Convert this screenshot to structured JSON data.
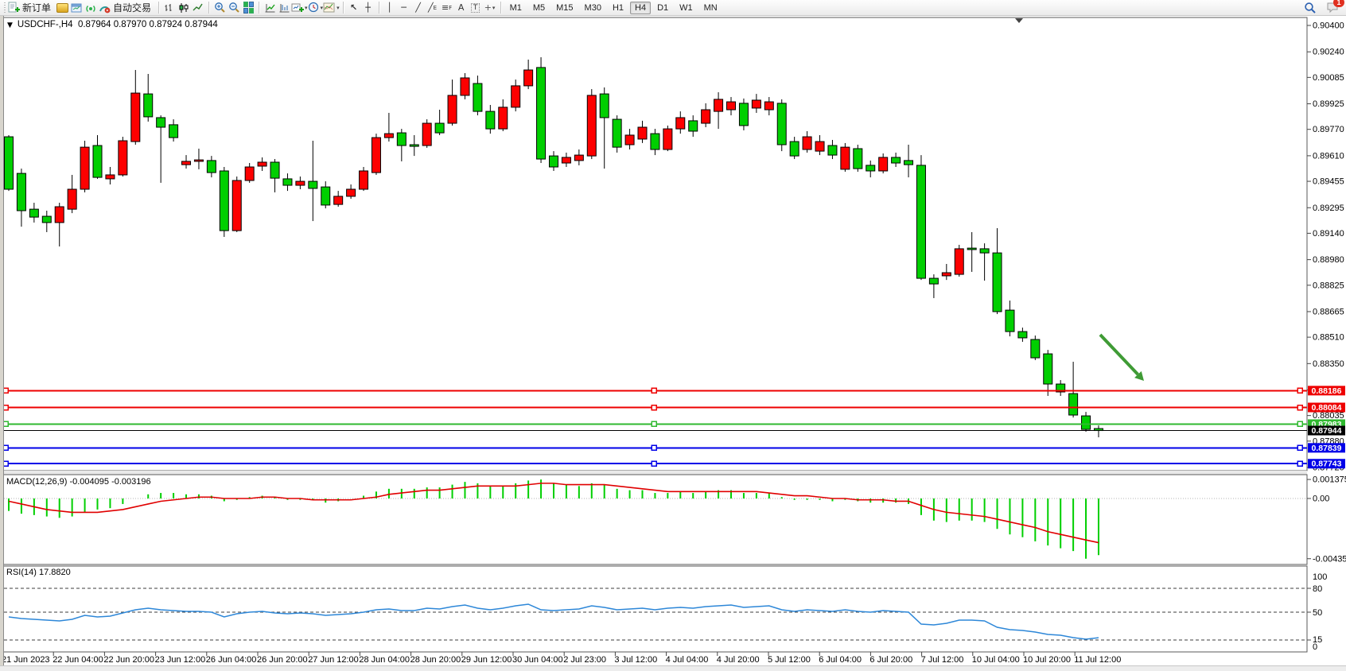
{
  "toolbar": {
    "new_order_label": "新订单",
    "autotrading_label": "自动交易",
    "timeframes": [
      "M1",
      "M5",
      "M15",
      "M30",
      "H1",
      "H4",
      "D1",
      "W1",
      "MN"
    ],
    "active_timeframe": "H4",
    "notification_count": "1"
  },
  "icons": {
    "chart-menu-icon": "▼",
    "cursor-icon": "↖",
    "crosshair-icon": "┼",
    "vertical-line-icon": "│",
    "horizontal-line-icon": "─",
    "trendline-icon": "╱",
    "channel-icon": "╱",
    "channel-sub": "E",
    "fibonacci-icon": "≡",
    "fibonacci-sub": "F",
    "text-icon": "A",
    "text-label-icon": "T",
    "arrows-tool-icon": "+",
    "dropdown-caret": "▾",
    "shift-marker-icon": "▼"
  },
  "chart": {
    "title": "USDCHF-,H4",
    "ohlc": "0.87964 0.87970 0.87924 0.87944"
  },
  "chart_data": {
    "type": "candlestick",
    "symbol": "USDCHF-",
    "timeframe": "H4",
    "ohlc_display": [
      "0.87964",
      "0.87970",
      "0.87924",
      "0.87944"
    ],
    "ylim": [
      0.877,
      0.9045
    ],
    "grid": false,
    "colors": {
      "candle_up": "#FD0000",
      "candle_down": "#00CF00",
      "candle_border": "#000000",
      "red_line": "#EE0000",
      "green_line": "#2FB92F",
      "blue_line": "#0000E8",
      "current_line": "#000000",
      "macd_hist": "#00CF00",
      "macd_signal": "#E00000",
      "rsi_line": "#2D87D8",
      "arrow": "#3F9B35"
    },
    "price_ticks": [
      "0.90400",
      "0.90240",
      "0.90085",
      "0.89925",
      "0.89770",
      "0.89610",
      "0.89455",
      "0.89295",
      "0.89140",
      "0.88980",
      "0.88825",
      "0.88665",
      "0.88510",
      "0.88350",
      "0.88190",
      "0.88035",
      "0.87880",
      "0.87720"
    ],
    "hlines": [
      {
        "price": 0.88186,
        "label": "0.88186",
        "color": "#EE0000"
      },
      {
        "price": 0.88084,
        "label": "0.88084",
        "color": "#EE0000"
      },
      {
        "price": 0.87983,
        "label": "0.87983",
        "color": "#2FB92F"
      },
      {
        "price": 0.87839,
        "label": "0.87839",
        "color": "#0000E8"
      },
      {
        "price": 0.87743,
        "label": "0.87743",
        "color": "#0000E8"
      }
    ],
    "current_price": {
      "price": 0.87944,
      "label": "0.87944",
      "color": "#000000"
    },
    "candles": [
      [
        0.89725,
        0.89735,
        0.89397,
        0.89407
      ],
      [
        0.89503,
        0.89532,
        0.8918,
        0.89277
      ],
      [
        0.89286,
        0.89325,
        0.89205,
        0.89238
      ],
      [
        0.89243,
        0.89277,
        0.89147,
        0.89205
      ],
      [
        0.89205,
        0.89325,
        0.8906,
        0.89301
      ],
      [
        0.89286,
        0.89494,
        0.89262,
        0.89407
      ],
      [
        0.89407,
        0.89701,
        0.89388,
        0.89662
      ],
      [
        0.89672,
        0.89735,
        0.8947,
        0.89479
      ],
      [
        0.8947,
        0.89542,
        0.89436,
        0.89494
      ],
      [
        0.89494,
        0.89725,
        0.89484,
        0.89701
      ],
      [
        0.89696,
        0.9013,
        0.89677,
        0.8999
      ],
      [
        0.89985,
        0.90106,
        0.89817,
        0.89846
      ],
      [
        0.89841,
        0.89855,
        0.89446,
        0.89783
      ],
      [
        0.89798,
        0.89831,
        0.89696,
        0.8972
      ],
      [
        0.89556,
        0.89614,
        0.89532,
        0.89576
      ],
      [
        0.89576,
        0.89653,
        0.89528,
        0.89585
      ],
      [
        0.89581,
        0.89609,
        0.89479,
        0.89508
      ],
      [
        0.89518,
        0.89542,
        0.89118,
        0.89156
      ],
      [
        0.89156,
        0.89484,
        0.89147,
        0.8946
      ],
      [
        0.8946,
        0.89566,
        0.89446,
        0.89542
      ],
      [
        0.89547,
        0.896,
        0.89518,
        0.89571
      ],
      [
        0.89571,
        0.8959,
        0.89388,
        0.89474
      ],
      [
        0.8947,
        0.89503,
        0.89397,
        0.89431
      ],
      [
        0.89431,
        0.89484,
        0.89407,
        0.89455
      ],
      [
        0.89455,
        0.89701,
        0.89214,
        0.89412
      ],
      [
        0.89421,
        0.89455,
        0.89291,
        0.89311
      ],
      [
        0.89315,
        0.89397,
        0.89301,
        0.89364
      ],
      [
        0.89364,
        0.89436,
        0.89349,
        0.89407
      ],
      [
        0.89407,
        0.89542,
        0.89397,
        0.89518
      ],
      [
        0.89508,
        0.89744,
        0.89494,
        0.8972
      ],
      [
        0.8972,
        0.8987,
        0.89696,
        0.89744
      ],
      [
        0.89749,
        0.89773,
        0.89576,
        0.89672
      ],
      [
        0.89677,
        0.89735,
        0.89609,
        0.89667
      ],
      [
        0.89672,
        0.89831,
        0.89658,
        0.89807
      ],
      [
        0.89807,
        0.89889,
        0.89735,
        0.89749
      ],
      [
        0.89807,
        0.90072,
        0.89793,
        0.89976
      ],
      [
        0.89976,
        0.90111,
        0.89952,
        0.90082
      ],
      [
        0.90048,
        0.90096,
        0.89855,
        0.89879
      ],
      [
        0.89879,
        0.89918,
        0.89744,
        0.89773
      ],
      [
        0.89773,
        0.89952,
        0.89759,
        0.89904
      ],
      [
        0.89904,
        0.90072,
        0.89879,
        0.90034
      ],
      [
        0.90034,
        0.90193,
        0.90014,
        0.9013
      ],
      [
        0.90145,
        0.90207,
        0.89566,
        0.8959
      ],
      [
        0.89609,
        0.89638,
        0.89518,
        0.89542
      ],
      [
        0.89566,
        0.89629,
        0.89542,
        0.896
      ],
      [
        0.89581,
        0.89648,
        0.89552,
        0.89614
      ],
      [
        0.89609,
        0.90014,
        0.8959,
        0.89976
      ],
      [
        0.89985,
        0.90024,
        0.89532,
        0.89841
      ],
      [
        0.89831,
        0.89855,
        0.89629,
        0.89662
      ],
      [
        0.89677,
        0.89773,
        0.89648,
        0.89735
      ],
      [
        0.89711,
        0.89822,
        0.89687,
        0.89783
      ],
      [
        0.89744,
        0.89773,
        0.89614,
        0.89648
      ],
      [
        0.89648,
        0.89793,
        0.89638,
        0.89773
      ],
      [
        0.89773,
        0.89879,
        0.89744,
        0.89841
      ],
      [
        0.89822,
        0.89855,
        0.89725,
        0.89759
      ],
      [
        0.89807,
        0.89928,
        0.89783,
        0.89889
      ],
      [
        0.89879,
        0.89995,
        0.89773,
        0.89952
      ],
      [
        0.89889,
        0.89966,
        0.89855,
        0.89937
      ],
      [
        0.89928,
        0.89957,
        0.89764,
        0.89793
      ],
      [
        0.89899,
        0.89985,
        0.8987,
        0.89947
      ],
      [
        0.89889,
        0.89966,
        0.89855,
        0.89937
      ],
      [
        0.89928,
        0.89952,
        0.89638,
        0.89677
      ],
      [
        0.89696,
        0.89725,
        0.8959,
        0.89609
      ],
      [
        0.89648,
        0.89759,
        0.89629,
        0.89725
      ],
      [
        0.89638,
        0.89735,
        0.89614,
        0.89696
      ],
      [
        0.89672,
        0.89706,
        0.8959,
        0.89614
      ],
      [
        0.89528,
        0.89687,
        0.89513,
        0.89662
      ],
      [
        0.89653,
        0.89677,
        0.89513,
        0.89532
      ],
      [
        0.89552,
        0.89581,
        0.89479,
        0.89518
      ],
      [
        0.89518,
        0.89624,
        0.89503,
        0.896
      ],
      [
        0.896,
        0.89629,
        0.89542,
        0.89566
      ],
      [
        0.89581,
        0.89677,
        0.89479,
        0.89556
      ],
      [
        0.89552,
        0.89614,
        0.88857,
        0.88867
      ],
      [
        0.88867,
        0.88891,
        0.88747,
        0.88833
      ],
      [
        0.88882,
        0.88954,
        0.88857,
        0.88901
      ],
      [
        0.88891,
        0.8907,
        0.88877,
        0.89046
      ],
      [
        0.8905,
        0.89147,
        0.88906,
        0.89041
      ],
      [
        0.89046,
        0.89079,
        0.88853,
        0.89021
      ],
      [
        0.89021,
        0.89171,
        0.8865,
        0.88665
      ],
      [
        0.88674,
        0.88732,
        0.88515,
        0.88544
      ],
      [
        0.88544,
        0.88568,
        0.88482,
        0.88506
      ],
      [
        0.88496,
        0.8852,
        0.88371,
        0.88385
      ],
      [
        0.88409,
        0.88433,
        0.88154,
        0.88226
      ],
      [
        0.88226,
        0.8825,
        0.88154,
        0.88178
      ],
      [
        0.88168,
        0.88361,
        0.88023,
        0.88038
      ],
      [
        0.88033,
        0.88057,
        0.87937,
        0.87951
      ],
      [
        0.87956,
        0.87975,
        0.87903,
        0.87944
      ]
    ],
    "macd": {
      "label": "MACD(12,26,9)",
      "values_text": "-0.004095 -0.003196",
      "label_full": "MACD(12,26,9) -0.004095 -0.003196",
      "scale_ticks": [
        "0.001375",
        "0.00",
        "-0.004356"
      ],
      "max": 0.001375,
      "min": -0.004356,
      "hist": [
        -0.0009,
        -0.0011,
        -0.0012,
        -0.0013,
        -0.0014,
        -0.0013,
        -0.001,
        -0.0008,
        -0.0007,
        -0.0004,
        0.0,
        0.0003,
        0.0004,
        0.0004,
        0.0003,
        0.0003,
        0.0002,
        -0.0002,
        -0.0001,
        0.0001,
        0.0002,
        0.0001,
        -0.0001,
        -0.0001,
        -0.0001,
        -0.0003,
        -0.0002,
        0.0,
        0.0002,
        0.0005,
        0.0007,
        0.0007,
        0.0007,
        0.0008,
        0.0008,
        0.001,
        0.0012,
        0.0011,
        0.0009,
        0.0009,
        0.0011,
        0.0013,
        0.00137,
        0.0011,
        0.001,
        0.0009,
        0.0011,
        0.001,
        0.0007,
        0.0006,
        0.0006,
        0.0004,
        0.0004,
        0.0005,
        0.0004,
        0.0005,
        0.0006,
        0.0006,
        0.0004,
        0.0004,
        0.0004,
        0.0001,
        -0.0001,
        -0.0001,
        -0.0001,
        -0.0002,
        -0.0001,
        -0.0002,
        -0.0003,
        -0.0003,
        -0.0003,
        -0.0004,
        -0.0012,
        -0.0016,
        -0.0017,
        -0.0016,
        -0.0016,
        -0.0017,
        -0.0022,
        -0.0026,
        -0.0028,
        -0.0031,
        -0.0034,
        -0.0036,
        -0.0038,
        -0.004356,
        -0.004095
      ],
      "signal": [
        -0.0002,
        -0.0004,
        -0.0006,
        -0.0008,
        -0.0009,
        -0.001,
        -0.001,
        -0.001,
        -0.0009,
        -0.0008,
        -0.0006,
        -0.0004,
        -0.0002,
        -0.0001,
        0.0,
        0.0001,
        0.0001,
        0.0,
        0.0,
        0.0,
        0.0001,
        0.0001,
        0.0,
        0.0,
        -0.0001,
        -0.0001,
        -0.0001,
        -0.0001,
        0.0,
        0.0001,
        0.0003,
        0.0004,
        0.0005,
        0.0006,
        0.0006,
        0.0007,
        0.0008,
        0.0009,
        0.0009,
        0.0009,
        0.0009,
        0.001,
        0.0011,
        0.0011,
        0.001,
        0.001,
        0.001,
        0.001,
        0.0009,
        0.0008,
        0.0007,
        0.0006,
        0.0005,
        0.0005,
        0.0005,
        0.0005,
        0.0005,
        0.0005,
        0.0005,
        0.0005,
        0.0004,
        0.0003,
        0.0002,
        0.0002,
        0.0001,
        0.0,
        0.0,
        -0.0001,
        -0.0001,
        -0.0001,
        -0.0002,
        -0.0002,
        -0.0005,
        -0.0008,
        -0.001,
        -0.0011,
        -0.0012,
        -0.0013,
        -0.0015,
        -0.0017,
        -0.0019,
        -0.0021,
        -0.0024,
        -0.0026,
        -0.0028,
        -0.003,
        -0.003196
      ]
    },
    "rsi": {
      "label": "RSI(14)",
      "value_text": "17.8820",
      "label_full": "RSI(14) 17.8820",
      "levels": [
        80,
        50,
        15
      ],
      "scale_ticks": [
        "100",
        "80",
        "50",
        "15",
        "0"
      ],
      "values": [
        44,
        42,
        41,
        40,
        39,
        41,
        46,
        44,
        45,
        49,
        53,
        55,
        53,
        52,
        51,
        51,
        50,
        44,
        48,
        50,
        51,
        49,
        48,
        49,
        48,
        46,
        47,
        48,
        50,
        53,
        54,
        52,
        52,
        55,
        54,
        57,
        59,
        55,
        53,
        55,
        58,
        60,
        53,
        52,
        53,
        54,
        58,
        56,
        53,
        54,
        55,
        53,
        55,
        56,
        55,
        57,
        58,
        59,
        56,
        57,
        58,
        53,
        51,
        53,
        52,
        51,
        53,
        51,
        50,
        52,
        51,
        50,
        35,
        34,
        36,
        40,
        40,
        39,
        31,
        28,
        27,
        25,
        22,
        21,
        18,
        16,
        17.882
      ]
    },
    "time_axis": {
      "labels": [
        "21 Jun 2023",
        "22 Jun 04:00",
        "22 Jun 20:00",
        "23 Jun 12:00",
        "26 Jun 04:00",
        "26 Jun 20:00",
        "27 Jun 12:00",
        "28 Jun 04:00",
        "28 Jun 20:00",
        "29 Jun 12:00",
        "30 Jun 04:00",
        "2 Jul 23:00",
        "3 Jul 12:00",
        "4 Jul 04:00",
        "4 Jul 20:00",
        "5 Jul 12:00",
        "6 Jul 04:00",
        "6 Jul 20:00",
        "7 Jul 12:00",
        "10 Jul 04:00",
        "10 Jul 20:00",
        "11 Jul 12:00"
      ]
    },
    "annotations": {
      "trend_arrow": {
        "from": [
          1383,
          421
        ],
        "to": [
          1438,
          479
        ],
        "color": "#3F9B35"
      },
      "shift_marker_x": 1281
    }
  }
}
